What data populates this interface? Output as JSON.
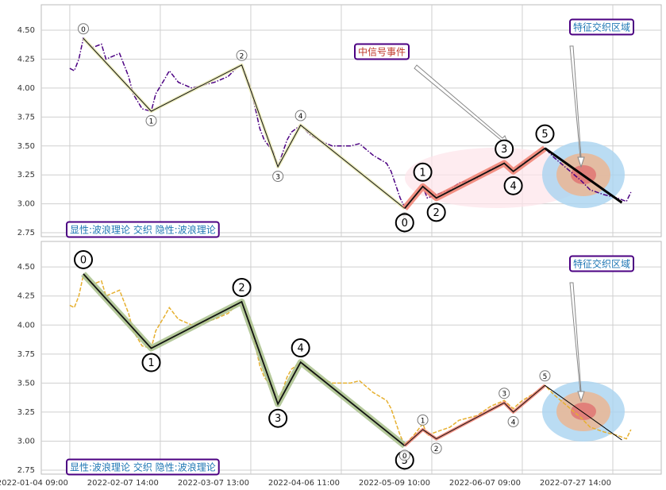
{
  "chart_data": [
    {
      "type": "line",
      "ylim": [
        2.716,
        4.72
      ],
      "yticks": [
        2.75,
        {
          "value": 3.0,
          "label": "3.00"
        },
        3.25,
        {
          "value": 3.5,
          "label": "3.50"
        },
        3.75,
        {
          "value": 4.0,
          "label": "4.00"
        },
        4.25,
        {
          "value": 4.5,
          "label": "4.50"
        }
      ],
      "xlim": [
        -6.3,
        130.7
      ],
      "grid": true,
      "series": [
        {
          "color": "#4b0082",
          "style": "dashdot",
          "x": [
            0,
            1,
            2,
            3,
            5,
            7,
            8,
            11,
            13,
            14,
            16,
            18,
            19,
            21,
            22,
            24,
            27,
            29,
            32,
            35,
            37,
            38,
            40,
            42,
            43,
            45,
            46,
            48,
            49,
            51,
            53,
            55,
            58,
            62,
            64,
            67,
            70,
            71,
            73,
            74,
            76,
            78,
            79,
            81,
            84,
            86,
            90,
            93,
            96,
            98,
            100,
            103,
            105,
            107,
            110,
            113,
            115,
            118,
            121,
            123,
            124
          ],
          "values": [
            4.17,
            4.15,
            4.25,
            4.43,
            4.35,
            4.38,
            4.25,
            4.3,
            4.1,
            3.95,
            3.82,
            3.8,
            3.95,
            4.08,
            4.15,
            4.05,
            4.0,
            4.02,
            4.05,
            4.1,
            4.18,
            4.2,
            4.0,
            3.65,
            3.55,
            3.45,
            3.32,
            3.55,
            3.62,
            3.68,
            3.6,
            3.55,
            3.5,
            3.5,
            3.52,
            3.42,
            3.35,
            3.28,
            3.05,
            2.97,
            3.05,
            3.15,
            3.05,
            3.08,
            3.12,
            3.18,
            3.22,
            3.3,
            3.35,
            3.28,
            3.35,
            3.42,
            3.48,
            3.4,
            3.3,
            3.2,
            3.12,
            3.08,
            3.05,
            3.02,
            3.1
          ]
        }
      ],
      "waves": [
        {
          "x": [
            3,
            18,
            38,
            46,
            51,
            74
          ],
          "values": [
            4.43,
            3.8,
            4.2,
            3.32,
            3.68,
            2.96
          ],
          "labels": [
            "0",
            "1",
            "2",
            "3",
            "4",
            "5"
          ],
          "highlight": "#e8e8b0",
          "label_size": "small"
        },
        {
          "x": [
            74,
            78,
            81,
            96,
            98,
            105
          ],
          "values": [
            2.96,
            3.15,
            3.05,
            3.35,
            3.28,
            3.48
          ],
          "labels": [
            "0",
            "1",
            "2",
            "3",
            "4",
            "5"
          ],
          "highlight": "#f08070",
          "label_size": "large"
        }
      ],
      "trend_line": {
        "x": [
          105,
          122
        ],
        "values": [
          3.48,
          3.01
        ],
        "width": 3
      },
      "annotations": [
        {
          "text": "中信号事件",
          "color": "#c0392b"
        },
        {
          "text": "特征交织区域",
          "color": "#1f77b4"
        }
      ],
      "footer_label": "显性:波浪理论 交织 隐性:波浪理论"
    },
    {
      "type": "line",
      "ylim": [
        2.716,
        4.72
      ],
      "yticks": [
        2.75,
        {
          "value": 3.0,
          "label": "3.00"
        },
        3.25,
        {
          "value": 3.5,
          "label": "3.50"
        },
        3.75,
        {
          "value": 4.0,
          "label": "4.00"
        },
        4.25,
        {
          "value": 4.5,
          "label": "4.50"
        }
      ],
      "xlim": [
        -6.3,
        130.7
      ],
      "xticks": [
        {
          "value": 0,
          "label": "2022-01-04 09:00"
        },
        {
          "value": 20,
          "label": "2022-02-07 14:00"
        },
        {
          "value": 40,
          "label": "2022-03-07 13:00"
        },
        {
          "value": 60,
          "label": "2022-04-06 11:00"
        },
        {
          "value": 80,
          "label": "2022-05-09 10:00"
        },
        {
          "value": 100,
          "label": "2022-06-07 09:00"
        },
        {
          "value": 120,
          "label": "2022-07-27 14:00"
        }
      ],
      "grid": true,
      "series": [
        {
          "color": "#e6b030",
          "style": "dashed",
          "x": [
            0,
            1,
            2,
            3,
            5,
            7,
            8,
            11,
            13,
            14,
            16,
            18,
            19,
            21,
            22,
            24,
            27,
            29,
            32,
            35,
            37,
            38,
            40,
            42,
            43,
            45,
            46,
            48,
            49,
            51,
            53,
            55,
            58,
            62,
            64,
            67,
            70,
            71,
            73,
            74,
            76,
            78,
            79,
            81,
            84,
            86,
            90,
            93,
            96,
            98,
            100,
            103,
            105,
            107,
            110,
            113,
            115,
            118,
            121,
            123,
            124
          ],
          "values": [
            4.17,
            4.15,
            4.25,
            4.43,
            4.35,
            4.38,
            4.25,
            4.3,
            4.1,
            3.95,
            3.82,
            3.8,
            3.95,
            4.08,
            4.15,
            4.05,
            4.0,
            4.02,
            4.05,
            4.1,
            4.18,
            4.2,
            4.0,
            3.65,
            3.55,
            3.45,
            3.32,
            3.55,
            3.62,
            3.68,
            3.6,
            3.55,
            3.5,
            3.5,
            3.52,
            3.42,
            3.35,
            3.28,
            3.05,
            2.97,
            3.05,
            3.15,
            3.05,
            3.08,
            3.12,
            3.18,
            3.22,
            3.3,
            3.35,
            3.28,
            3.35,
            3.42,
            3.48,
            3.4,
            3.3,
            3.2,
            3.12,
            3.08,
            3.05,
            3.02,
            3.1
          ]
        }
      ],
      "waves": [
        {
          "x": [
            3,
            18,
            38,
            46,
            51,
            74
          ],
          "values": [
            4.44,
            3.8,
            4.2,
            3.32,
            3.68,
            2.96
          ],
          "labels": [
            "0",
            "1",
            "2",
            "3",
            "4",
            "5"
          ],
          "highlight": "#a8bf8a",
          "label_size": "large"
        },
        {
          "x": [
            74,
            78,
            81,
            96,
            98,
            105
          ],
          "values": [
            2.96,
            3.1,
            3.02,
            3.33,
            3.25,
            3.48
          ],
          "labels": [
            "0",
            "1",
            "2",
            "3",
            "4",
            "5"
          ],
          "highlight": "#f08070",
          "label_size": "small"
        }
      ],
      "trend_line": {
        "x": [
          105,
          122
        ],
        "values": [
          3.48,
          3.01
        ],
        "width": 1
      },
      "annotations": [
        {
          "text": "特征交织区域",
          "color": "#1f77b4"
        }
      ],
      "footer_label": "显性:波浪理论 交织 隐性:波浪理论"
    }
  ]
}
